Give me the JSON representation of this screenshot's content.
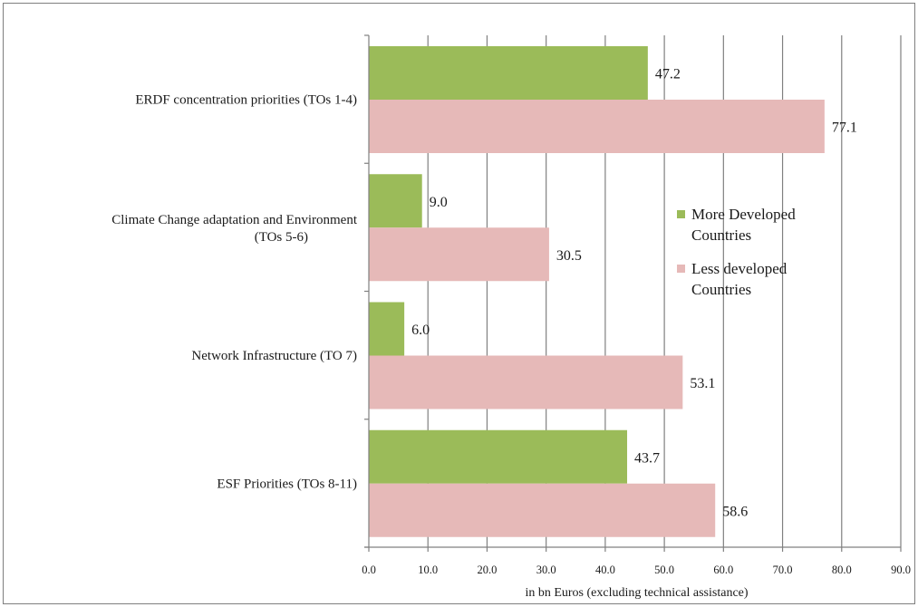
{
  "chart_data": {
    "type": "bar",
    "orientation": "horizontal",
    "categories": [
      [
        "ERDF concentration priorities (TOs 1-4)"
      ],
      [
        "Climate Change adaptation and Environment",
        "(TOs 5-6)"
      ],
      [
        "Network Infrastructure (TO 7)"
      ],
      [
        "ESF Priorities (TOs 8-11)"
      ]
    ],
    "series": [
      {
        "name": "More Developed Countries",
        "legend_lines": [
          "More Developed",
          "Countries"
        ],
        "color": "#9bbb59",
        "values": [
          47.2,
          9.0,
          6.0,
          43.7
        ]
      },
      {
        "name": "Less developed Countries",
        "legend_lines": [
          "Less developed",
          "Countries"
        ],
        "color": "#e6b9b8",
        "values": [
          77.1,
          30.5,
          53.1,
          58.6
        ]
      }
    ],
    "data_labels": [
      [
        "47.2",
        "9.0",
        "6.0",
        "43.7"
      ],
      [
        "77.1",
        "30.5",
        "53.1",
        "58.6"
      ]
    ],
    "xlabel": "in bn Euros (excluding technical assistance)",
    "xlim": [
      0,
      90
    ],
    "xticks": [
      "0.0",
      "10.0",
      "20.0",
      "30.0",
      "40.0",
      "50.0",
      "60.0",
      "70.0",
      "80.0",
      "90.0"
    ],
    "grid": "vertical major gridlines",
    "gridline_color": "#808080",
    "legend_position": "right"
  }
}
